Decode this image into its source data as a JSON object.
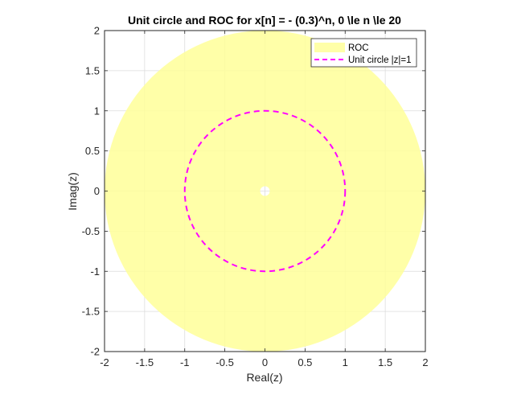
{
  "chart_data": {
    "type": "region",
    "title": "Unit circle and ROC for x[n] = - (0.3)^n, 0 \\le n \\le 20",
    "xlabel": "Real(z)",
    "ylabel": "Imag(z)",
    "xlim": [
      -2,
      2
    ],
    "ylim": [
      -2,
      2
    ],
    "xticks": [
      -2,
      -1.5,
      -1,
      -0.5,
      0,
      0.5,
      1,
      1.5,
      2
    ],
    "yticks": [
      -2,
      -1.5,
      -1,
      -0.5,
      0,
      0.5,
      1,
      1.5,
      2
    ],
    "xtick_labels": [
      "-2",
      "-1.5",
      "-1",
      "-0.5",
      "0",
      "0.5",
      "1",
      "1.5",
      "2"
    ],
    "ytick_labels": [
      "-2",
      "-1.5",
      "-1",
      "-0.5",
      "0",
      "0.5",
      "1",
      "1.5",
      "2"
    ],
    "grid": true,
    "legend_position": "top-right",
    "series": [
      {
        "name": "ROC",
        "kind": "annulus",
        "inner_radius": 0.02,
        "outer_radius": 2,
        "color": "#ffff99",
        "opacity": 0.85
      },
      {
        "name": "Unit circle |z|=1",
        "kind": "circle",
        "radius": 1,
        "color": "#ff00ff",
        "linestyle": "dashed"
      }
    ]
  }
}
